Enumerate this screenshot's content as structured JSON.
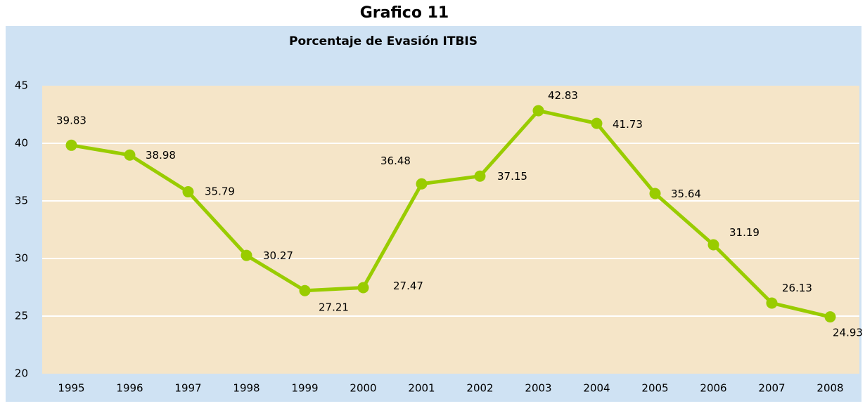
{
  "heading": "Grafico 11",
  "chart_data": {
    "type": "line",
    "title": "Porcentaje de Evasión ITBIS",
    "categories": [
      "1995",
      "1996",
      "1997",
      "1998",
      "1999",
      "2000",
      "2001",
      "2002",
      "2003",
      "2004",
      "2005",
      "2006",
      "2007",
      "2008"
    ],
    "series": [
      {
        "color": "#99cc00",
        "values": [
          39.83,
          38.98,
          35.79,
          30.27,
          27.21,
          27.47,
          36.48,
          37.15,
          42.83,
          41.73,
          35.64,
          31.19,
          26.13,
          24.93
        ]
      }
    ],
    "ylim": [
      20,
      45
    ],
    "yticks": [
      20,
      25,
      30,
      35,
      40,
      45
    ],
    "grid": true
  }
}
